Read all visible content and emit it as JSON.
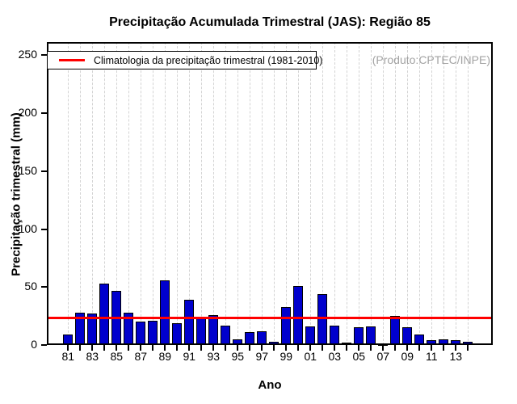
{
  "chart_data": {
    "type": "bar",
    "title": "Precipitação Acumulada Trimestral (JAS): Região 85",
    "xlabel": "Ano",
    "ylabel": "Precipitação trimestral (mm)",
    "annotation": "(Produto:CPTEC/INPE)",
    "legend_label": "Climatologia da precipitação trimestral (1981-2010)",
    "legend_position": "top-left",
    "grid": "vertical-dashed",
    "ylim": [
      0,
      260
    ],
    "yticks": [
      0,
      50,
      100,
      150,
      200,
      250
    ],
    "x_labeled_every": 2,
    "categories": [
      "81",
      "82",
      "83",
      "84",
      "85",
      "86",
      "87",
      "88",
      "89",
      "90",
      "91",
      "92",
      "93",
      "94",
      "95",
      "96",
      "97",
      "98",
      "99",
      "00",
      "01",
      "02",
      "03",
      "04",
      "05",
      "06",
      "07",
      "08",
      "09",
      "10",
      "11",
      "12",
      "13",
      "14"
    ],
    "values": [
      9,
      28,
      27,
      53,
      47,
      28,
      20,
      21,
      56,
      19,
      39,
      23,
      26,
      17,
      5,
      11,
      12,
      3,
      33,
      51,
      16,
      44,
      17,
      2,
      15,
      16,
      1,
      25,
      15,
      9,
      4,
      5,
      4,
      3
    ],
    "climatology_value": 23,
    "colors": {
      "bar_fill": "#0000cd",
      "bar_border": "#000000",
      "climatology_line": "#ff0000",
      "grid_line": "#d3d3d3",
      "annotation_text": "#a3a3a3"
    }
  }
}
